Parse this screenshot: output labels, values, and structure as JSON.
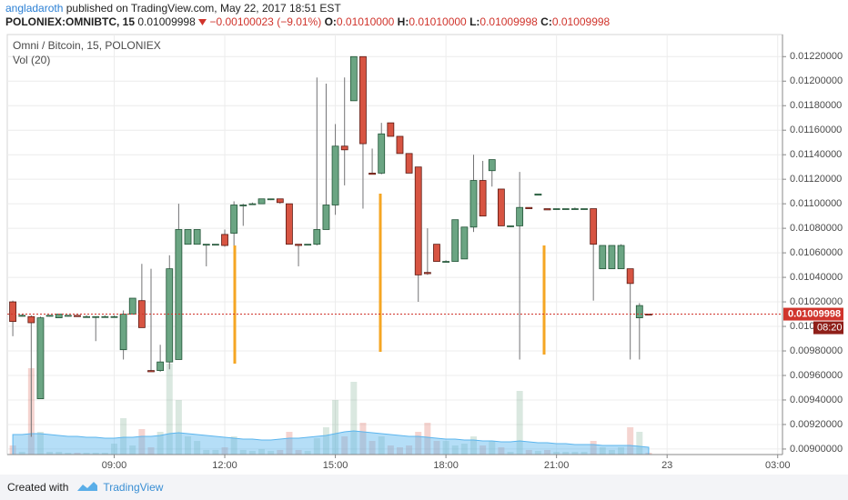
{
  "header": {
    "author": "angladaroth",
    "published": "published on TradingView.com, May 22, 2017 18:51 EST",
    "symbol": "POLONIEX:OMNIBTC, 15",
    "last": "0.01009998",
    "change": "−0.00100023 (−9.01%)",
    "o_label": "O:",
    "o": "0.01010000",
    "h_label": "H:",
    "h": "0.01010000",
    "l_label": "L:",
    "l": "0.01009998",
    "c_label": "C:",
    "c": "0.01009998"
  },
  "chart_data": {
    "type": "candlestick",
    "title": "Omni / Bitcoin, 15, POLONIEX",
    "volume_label": "Vol (20)",
    "x": [
      6.25,
      6.5,
      6.75,
      7,
      7.25,
      7.5,
      7.75,
      8,
      8.25,
      8.5,
      8.75,
      9,
      9.25,
      9.5,
      9.75,
      10,
      10.25,
      10.5,
      10.75,
      11,
      11.25,
      11.5,
      11.75,
      12,
      12.25,
      12.5,
      12.75,
      13,
      13.25,
      13.5,
      13.75,
      14,
      14.25,
      14.5,
      14.75,
      15,
      15.25,
      15.5,
      15.75,
      16,
      16.25,
      16.5,
      16.75,
      17,
      17.25,
      17.5,
      17.75,
      18,
      18.25,
      18.5,
      18.75,
      19,
      19.25,
      19.5,
      19.75,
      20,
      20.25,
      20.5,
      20.75,
      21,
      21.25,
      21.5,
      21.75,
      22,
      22.25,
      22.5,
      22.75,
      23,
      23.25,
      23.5
    ],
    "open": [
      0.0102,
      0.01009,
      0.01008,
      0.00941,
      0.01009,
      0.01007,
      0.01009,
      0.01009,
      0.01008,
      0.01008,
      0.01008,
      0.01008,
      0.00981,
      0.0101,
      0.01021,
      0.00964,
      0.00964,
      0.00971,
      0.00973,
      0.01067,
      0.01067,
      0.01067,
      0.01067,
      0.01075,
      0.01076,
      0.01099,
      0.011,
      0.011,
      0.01104,
      0.01104,
      0.011,
      0.01067,
      0.01067,
      0.01067,
      0.01079,
      0.01099,
      0.01147,
      0.01184,
      0.0122,
      0.01125,
      0.01125,
      0.01166,
      0.01155,
      0.01141,
      0.0113,
      0.01044,
      0.01067,
      0.01053,
      0.01053,
      0.01055,
      0.01081,
      0.01119,
      0.01127,
      0.01112,
      0.01082,
      0.01082,
      0.01097,
      0.01107,
      0.01096,
      0.01096,
      0.01096,
      0.01096,
      0.01096,
      0.01096,
      0.01047,
      0.01047,
      0.01047,
      0.01047,
      0.01007,
      0.0101
    ],
    "high": [
      0.01021,
      0.0101,
      0.01009,
      0.01008,
      0.01009,
      0.0101,
      0.01009,
      0.01009,
      0.01009,
      0.01008,
      0.01009,
      0.01009,
      0.01013,
      0.01023,
      0.01051,
      0.01047,
      0.00985,
      0.01058,
      0.011,
      0.01079,
      0.01079,
      0.01067,
      0.01067,
      0.01079,
      0.01102,
      0.011,
      0.01101,
      0.01104,
      0.01104,
      0.01104,
      0.011,
      0.01067,
      0.01067,
      0.01203,
      0.01198,
      0.01165,
      0.01203,
      0.0122,
      0.0122,
      0.01145,
      0.01166,
      0.01166,
      0.01155,
      0.01141,
      0.0113,
      0.0108,
      0.01067,
      0.01054,
      0.01087,
      0.01081,
      0.0114,
      0.01135,
      0.01136,
      0.01112,
      0.01082,
      0.01126,
      0.01097,
      0.01108,
      0.01096,
      0.01096,
      0.01096,
      0.01097,
      0.01096,
      0.01096,
      0.01066,
      0.01066,
      0.01067,
      0.01047,
      0.01019,
      0.0101
    ],
    "low": [
      0.00992,
      0.01008,
      0.0091,
      0.00941,
      0.01008,
      0.01007,
      0.01008,
      0.01008,
      0.01008,
      0.00988,
      0.01008,
      0.01008,
      0.00973,
      0.0101,
      0.00999,
      0.00963,
      0.00963,
      0.00965,
      0.00973,
      0.01067,
      0.01067,
      0.01049,
      0.01066,
      0.01065,
      0.01066,
      0.01082,
      0.011,
      0.011,
      0.01103,
      0.011,
      0.01067,
      0.01049,
      0.01067,
      0.01066,
      0.01079,
      0.01091,
      0.01115,
      0.01184,
      0.01096,
      0.01124,
      0.01124,
      0.01155,
      0.01141,
      0.01125,
      0.0102,
      0.01042,
      0.01053,
      0.01052,
      0.01053,
      0.01055,
      0.01077,
      0.0109,
      0.01114,
      0.01082,
      0.01081,
      0.00973,
      0.01096,
      0.01107,
      0.01095,
      0.01095,
      0.01096,
      0.01096,
      0.01095,
      0.01021,
      0.01047,
      0.01047,
      0.01047,
      0.00973,
      0.00973,
      0.01009998
    ],
    "close": [
      0.01004,
      0.01009,
      0.01003,
      0.01007,
      0.01009,
      0.0101,
      0.01009,
      0.01008,
      0.01008,
      0.01008,
      0.01008,
      0.01008,
      0.0101,
      0.01023,
      0.00999,
      0.00963,
      0.00971,
      0.01047,
      0.01079,
      0.01079,
      0.01079,
      0.01067,
      0.01067,
      0.01066,
      0.01099,
      0.01099,
      0.011,
      0.01104,
      0.01104,
      0.01101,
      0.01067,
      0.01066,
      0.01067,
      0.01079,
      0.01099,
      0.01147,
      0.01144,
      0.0122,
      0.01149,
      0.01124,
      0.01157,
      0.01155,
      0.01141,
      0.01125,
      0.01042,
      0.01043,
      0.01053,
      0.01053,
      0.01087,
      0.01081,
      0.01119,
      0.0109,
      0.01136,
      0.01082,
      0.01082,
      0.01097,
      0.01096,
      0.01108,
      0.01095,
      0.01096,
      0.01096,
      0.01096,
      0.01096,
      0.01067,
      0.01066,
      0.01066,
      0.01066,
      0.01035,
      0.01017,
      0.01009998
    ],
    "volume": [
      10,
      3,
      95,
      25,
      3,
      3,
      2,
      2,
      2,
      2,
      2,
      12,
      40,
      10,
      28,
      8,
      25,
      100,
      60,
      20,
      15,
      5,
      5,
      8,
      20,
      5,
      4,
      6,
      4,
      5,
      25,
      5,
      4,
      18,
      30,
      60,
      20,
      80,
      35,
      15,
      20,
      10,
      8,
      10,
      25,
      35,
      15,
      15,
      10,
      12,
      20,
      10,
      15,
      8,
      3,
      70,
      5,
      4,
      5,
      3,
      3,
      3,
      3,
      15,
      8,
      5,
      8,
      30,
      25,
      2
    ],
    "volume_ma": [
      22,
      22,
      23,
      23,
      22,
      21,
      20,
      20,
      19,
      19,
      18,
      18,
      19,
      19,
      20,
      20,
      21,
      23,
      24,
      23,
      22,
      21,
      20,
      19,
      18,
      17,
      17,
      16,
      16,
      17,
      18,
      18,
      19,
      20,
      21,
      23,
      25,
      26,
      25,
      24,
      23,
      22,
      21,
      20,
      20,
      19,
      18,
      17,
      17,
      16,
      16,
      15,
      15,
      14,
      14,
      15,
      14,
      13,
      13,
      12,
      12,
      11,
      11,
      11,
      10,
      10,
      10,
      10,
      9,
      8
    ],
    "up_color": "#6ba583",
    "down_color": "#d75442",
    "volume_ma_color": "#5bb5ee",
    "last_price": 0.01009998,
    "countdown": "08:20",
    "xlim": [
      6.1,
      27.13
    ],
    "xticks": [
      {
        "value": 9,
        "label": "09:00"
      },
      {
        "value": 12,
        "label": "12:00"
      },
      {
        "value": 15,
        "label": "15:00"
      },
      {
        "value": 18,
        "label": "18:00"
      },
      {
        "value": 21,
        "label": "21:00"
      },
      {
        "value": 24,
        "label": "23"
      },
      {
        "value": 27,
        "label": "03:00"
      }
    ],
    "ylim": [
      0.008955,
      0.01238
    ],
    "yticks": [
      {
        "value": 0.009,
        "label": "0.00900000"
      },
      {
        "value": 0.0092,
        "label": "0.00920000"
      },
      {
        "value": 0.0094,
        "label": "0.00940000"
      },
      {
        "value": 0.0096,
        "label": "0.00960000"
      },
      {
        "value": 0.0098,
        "label": "0.00980000"
      },
      {
        "value": 0.01,
        "label": "0.01000000"
      },
      {
        "value": 0.0102,
        "label": "0.01020000"
      },
      {
        "value": 0.0104,
        "label": "0.01040000"
      },
      {
        "value": 0.0106,
        "label": "0.01060000"
      },
      {
        "value": 0.0108,
        "label": "0.01080000"
      },
      {
        "value": 0.011,
        "label": "0.01100000"
      },
      {
        "value": 0.0112,
        "label": "0.01120000"
      },
      {
        "value": 0.0114,
        "label": "0.01140000"
      },
      {
        "value": 0.0116,
        "label": "0.01160000"
      },
      {
        "value": 0.0118,
        "label": "0.01180000"
      },
      {
        "value": 0.012,
        "label": "0.01200000"
      },
      {
        "value": 0.0122,
        "label": "0.01220000"
      }
    ],
    "grid": true
  },
  "footer": {
    "created": "Created with",
    "brand": "TradingView"
  }
}
